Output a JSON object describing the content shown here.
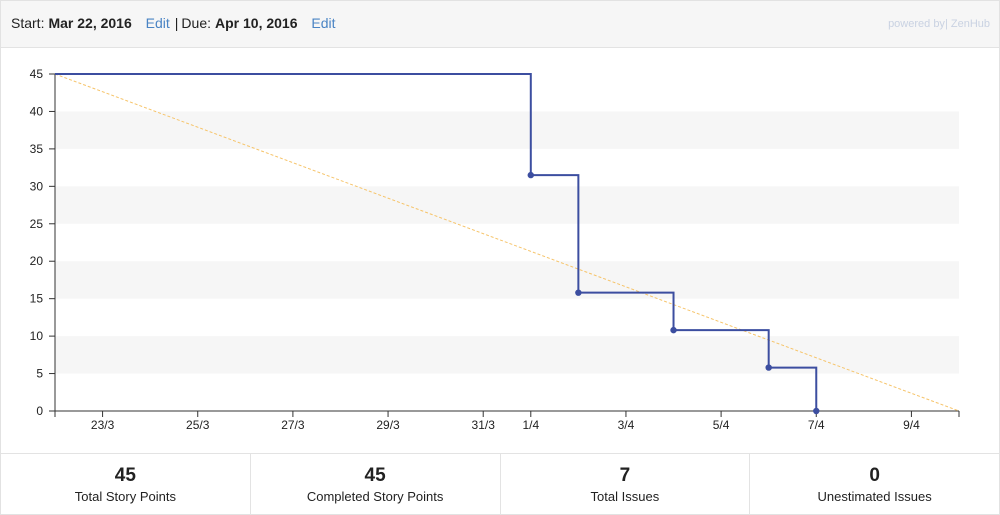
{
  "header": {
    "start_label": "Start:",
    "start_date": "Mar 22, 2016",
    "start_edit": "Edit",
    "separator": "|",
    "due_label": "Due:",
    "due_date": "Apr 10, 2016",
    "due_edit": "Edit",
    "powered_prefix": "powered by",
    "powered_brand": "ZenHub"
  },
  "colors": {
    "burndown_line": "#3c4ea0",
    "ideal_line": "#f6c46a",
    "band": "#f6f6f6"
  },
  "chart_data": {
    "type": "line",
    "title": "",
    "xlabel": "",
    "ylabel": "",
    "x_start": "2016-03-22",
    "x_end": "2016-04-10",
    "ylim": [
      0,
      45
    ],
    "yticks": [
      0,
      5,
      10,
      15,
      20,
      25,
      30,
      35,
      40,
      45
    ],
    "xtick_labels": [
      "23/3",
      "25/3",
      "27/3",
      "29/3",
      "31/3",
      "1/4",
      "3/4",
      "5/4",
      "7/4",
      "9/4"
    ],
    "ideal": {
      "points": [
        {
          "date": "2016-03-22",
          "value": 45
        },
        {
          "date": "2016-04-10",
          "value": 0
        }
      ]
    },
    "actual": {
      "steps": [
        {
          "date": "2016-03-22",
          "value": 45
        },
        {
          "date": "2016-04-01",
          "value": 31.5
        },
        {
          "date": "2016-04-02",
          "value": 15.8
        },
        {
          "date": "2016-04-04",
          "value": 10.8
        },
        {
          "date": "2016-04-06",
          "value": 5.8
        },
        {
          "date": "2016-04-07",
          "value": 0
        }
      ]
    },
    "grid": "horizontal alternating bands"
  },
  "stats": [
    {
      "value": "45",
      "label": "Total Story Points"
    },
    {
      "value": "45",
      "label": "Completed Story Points"
    },
    {
      "value": "7",
      "label": "Total Issues"
    },
    {
      "value": "0",
      "label": "Unestimated Issues"
    }
  ]
}
